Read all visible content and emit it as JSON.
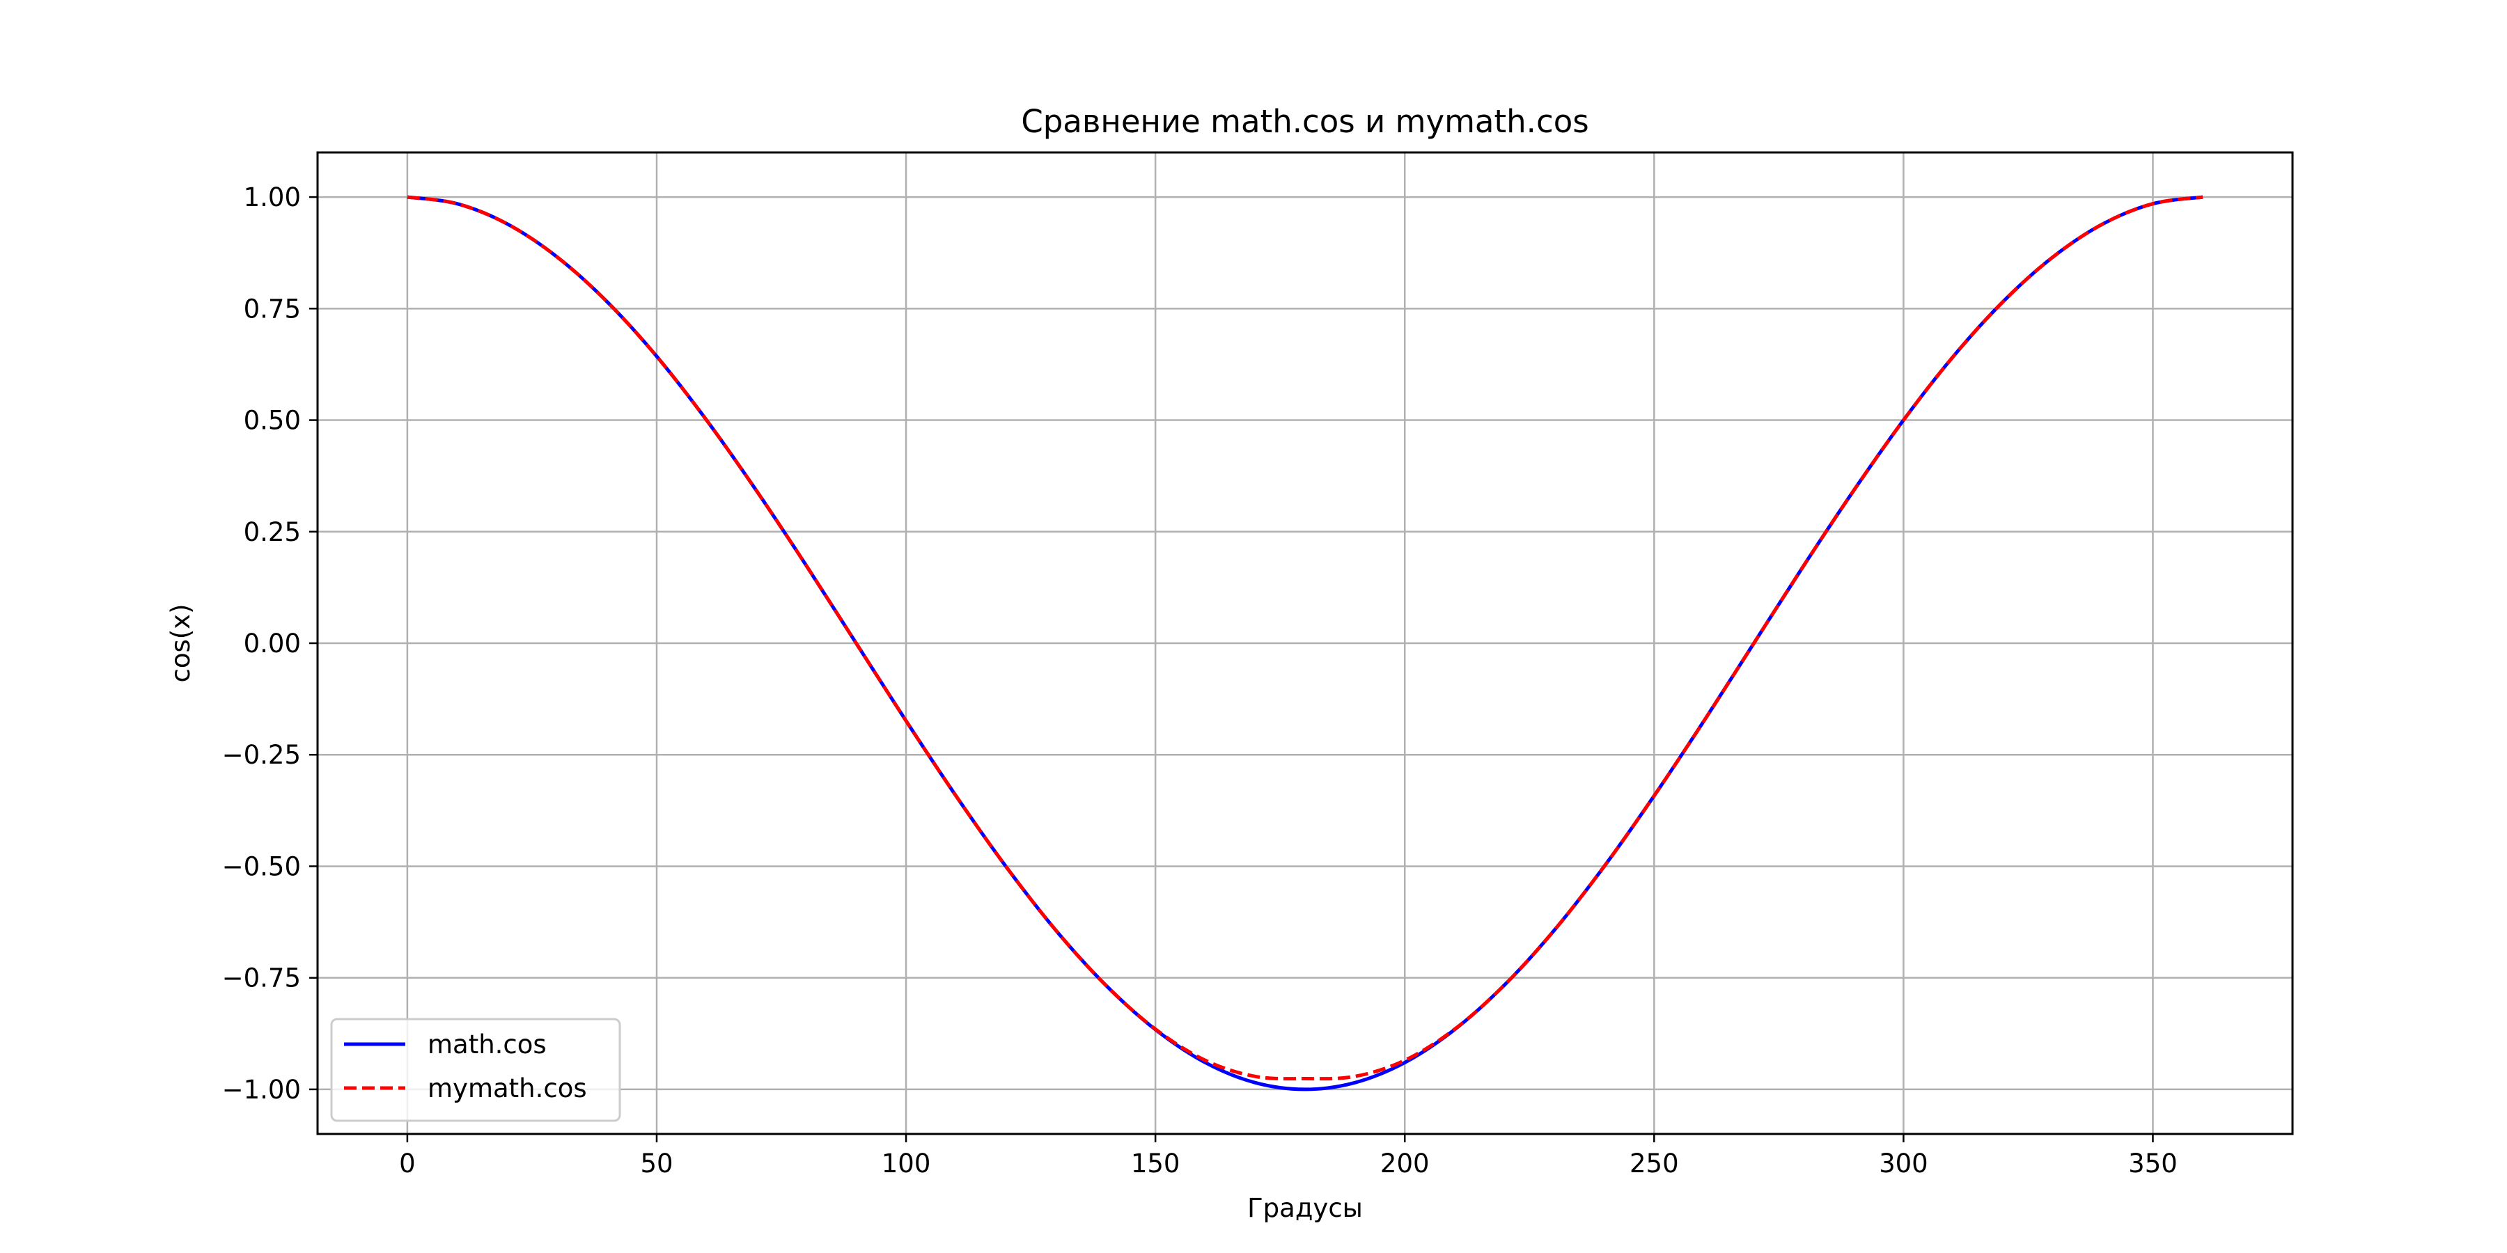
{
  "chart_data": {
    "type": "line",
    "title": "Сравнение math.cos и mymath.cos",
    "xlabel": "Градусы",
    "ylabel": "cos(x)",
    "xlim": [
      -18,
      378
    ],
    "ylim": [
      -1.1,
      1.1
    ],
    "x_ticks": [
      0,
      50,
      100,
      150,
      200,
      250,
      300,
      350
    ],
    "x_tick_labels": [
      "0",
      "50",
      "100",
      "150",
      "200",
      "250",
      "300",
      "350"
    ],
    "y_ticks": [
      1.0,
      0.75,
      0.5,
      0.25,
      0.0,
      -0.25,
      -0.5,
      -0.75,
      -1.0
    ],
    "y_tick_labels": [
      "1.00",
      "0.75",
      "0.50",
      "0.25",
      "0.00",
      "−0.25",
      "−0.50",
      "−0.75",
      "−1.00"
    ],
    "grid": true,
    "legend_position": "lower-left",
    "x": [
      0,
      10,
      20,
      30,
      40,
      50,
      60,
      70,
      80,
      90,
      100,
      110,
      120,
      130,
      140,
      150,
      160,
      170,
      180,
      190,
      200,
      210,
      220,
      230,
      240,
      250,
      260,
      270,
      280,
      290,
      300,
      310,
      320,
      330,
      340,
      350,
      360
    ],
    "series": [
      {
        "name": "math.cos",
        "color": "#0000ff",
        "style": "solid",
        "values": [
          1.0,
          0.985,
          0.94,
          0.866,
          0.766,
          0.643,
          0.5,
          0.342,
          0.174,
          0.0,
          -0.174,
          -0.342,
          -0.5,
          -0.643,
          -0.766,
          -0.866,
          -0.94,
          -0.985,
          -1.0,
          -0.985,
          -0.94,
          -0.866,
          -0.766,
          -0.643,
          -0.5,
          -0.342,
          -0.174,
          0.0,
          0.174,
          0.342,
          0.5,
          0.643,
          0.766,
          0.866,
          0.94,
          0.985,
          1.0
        ]
      },
      {
        "name": "mymath.cos",
        "color": "#ff0000",
        "style": "dashed",
        "values": [
          1.0,
          0.985,
          0.94,
          0.866,
          0.766,
          0.643,
          0.5,
          0.342,
          0.174,
          0.0,
          -0.174,
          -0.342,
          -0.5,
          -0.643,
          -0.766,
          -0.865,
          -0.935,
          -0.971,
          -0.976,
          -0.971,
          -0.935,
          -0.865,
          -0.766,
          -0.643,
          -0.5,
          -0.342,
          -0.174,
          0.0,
          0.174,
          0.342,
          0.5,
          0.643,
          0.766,
          0.866,
          0.94,
          0.985,
          1.0
        ]
      }
    ]
  }
}
